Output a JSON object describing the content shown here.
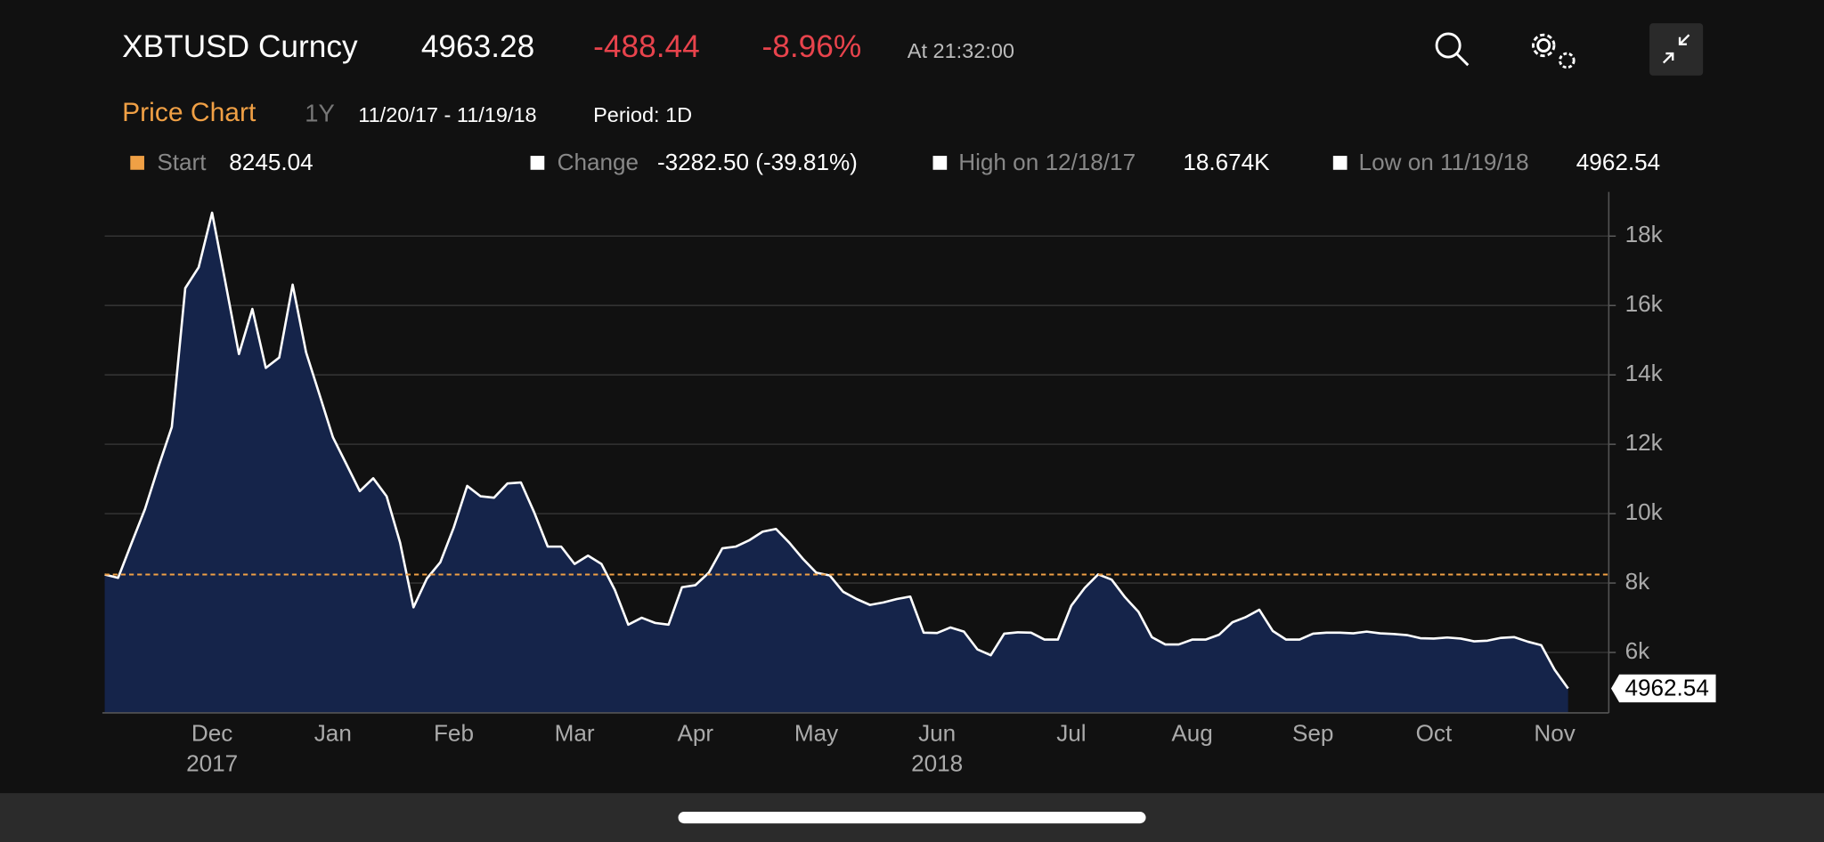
{
  "header": {
    "ticker": "XBTUSD Curncy",
    "price": "4963.28",
    "change": "-488.44",
    "change_pct": "-8.96%",
    "time": "At 21:32:00"
  },
  "toolbar": {
    "title": "Price Chart",
    "range": "1Y",
    "dates": "11/20/17 - 11/19/18",
    "period": "Period: 1D"
  },
  "stats": {
    "start_label": "Start",
    "change_label": "Change",
    "change": "-3282.50 (-39.81%)",
    "high_label": "High on 12/18/17",
    "high": "18.674K",
    "low_label": "Low on 11/19/18"
  },
  "chart_data": {
    "type": "area",
    "categories": [
      null,
      null,
      null,
      null,
      null,
      null,
      null,
      null,
      "Dec",
      null,
      null,
      null,
      null,
      null,
      null,
      null,
      null,
      "Jan",
      null,
      null,
      null,
      null,
      null,
      null,
      null,
      null,
      "Feb",
      null,
      null,
      null,
      null,
      null,
      null,
      null,
      null,
      "Mar",
      null,
      null,
      null,
      null,
      null,
      null,
      null,
      null,
      "Apr",
      null,
      null,
      null,
      null,
      null,
      null,
      null,
      null,
      "May",
      null,
      null,
      null,
      null,
      null,
      null,
      null,
      null,
      "Jun",
      null,
      null,
      null,
      null,
      null,
      null,
      null,
      null,
      null,
      "Jul",
      null,
      null,
      null,
      null,
      null,
      null,
      null,
      null,
      "Aug",
      null,
      null,
      null,
      null,
      null,
      null,
      null,
      null,
      "Sep",
      null,
      null,
      null,
      null,
      null,
      null,
      null,
      null,
      "Oct",
      null,
      null,
      null,
      null,
      null,
      null,
      null,
      null,
      "Nov",
      null
    ],
    "category_years": [
      null,
      null,
      null,
      null,
      null,
      null,
      null,
      null,
      "2017",
      null,
      null,
      null,
      null,
      null,
      null,
      null,
      null,
      null,
      null,
      null,
      null,
      null,
      null,
      null,
      null,
      null,
      null,
      null,
      null,
      null,
      null,
      null,
      null,
      null,
      null,
      null,
      null,
      null,
      null,
      null,
      null,
      null,
      null,
      null,
      null,
      null,
      null,
      null,
      null,
      null,
      null,
      null,
      null,
      null,
      null,
      null,
      null,
      null,
      null,
      null,
      null,
      null,
      "2018",
      null,
      null,
      null,
      null,
      null,
      null,
      null,
      null,
      null,
      null,
      null,
      null,
      null,
      null,
      null,
      null,
      null,
      null,
      null,
      null,
      null,
      null,
      null,
      null,
      null,
      null,
      null,
      null,
      null,
      null,
      null,
      null,
      null,
      null,
      null,
      null,
      null,
      null,
      null,
      null,
      null,
      null,
      null,
      null,
      null,
      null,
      null
    ],
    "values": [
      8245,
      8150,
      9150,
      10130,
      11350,
      12500,
      16500,
      17100,
      18674,
      16650,
      14600,
      15900,
      14200,
      14500,
      16600,
      14650,
      13430,
      12200,
      11430,
      10650,
      11020,
      10500,
      9170,
      7300,
      8130,
      8600,
      9600,
      10800,
      10500,
      10460,
      10870,
      10900,
      10030,
      9050,
      9050,
      8550,
      8790,
      8550,
      7800,
      6800,
      7000,
      6850,
      6800,
      7880,
      7940,
      8300,
      9000,
      9050,
      9230,
      9480,
      9560,
      9160,
      8700,
      8300,
      8220,
      7750,
      7540,
      7370,
      7440,
      7540,
      7610,
      6570,
      6560,
      6720,
      6600,
      6090,
      5920,
      6540,
      6580,
      6570,
      6370,
      6370,
      7350,
      7860,
      8250,
      8100,
      7590,
      7170,
      6440,
      6230,
      6230,
      6370,
      6370,
      6510,
      6870,
      7020,
      7230,
      6620,
      6370,
      6370,
      6540,
      6570,
      6570,
      6550,
      6600,
      6550,
      6530,
      6500,
      6410,
      6400,
      6430,
      6400,
      6320,
      6340,
      6420,
      6440,
      6310,
      6210,
      5500,
      4962.54
    ],
    "color": "#ffffff",
    "fill": "#15244a",
    "ylim": [
      4257,
      19274
    ],
    "yticks": [
      {
        "value": 6000,
        "label": "6k"
      },
      {
        "value": 8000,
        "label": "8k"
      },
      {
        "value": 10000,
        "label": "10k"
      },
      {
        "value": 12000,
        "label": "12k"
      },
      {
        "value": 14000,
        "label": "14k"
      },
      {
        "value": 16000,
        "label": "16k"
      },
      {
        "value": 18000,
        "label": "18k"
      }
    ],
    "grid": true,
    "reference_line": {
      "value": 8245.04,
      "color": "#f0a045"
    }
  }
}
